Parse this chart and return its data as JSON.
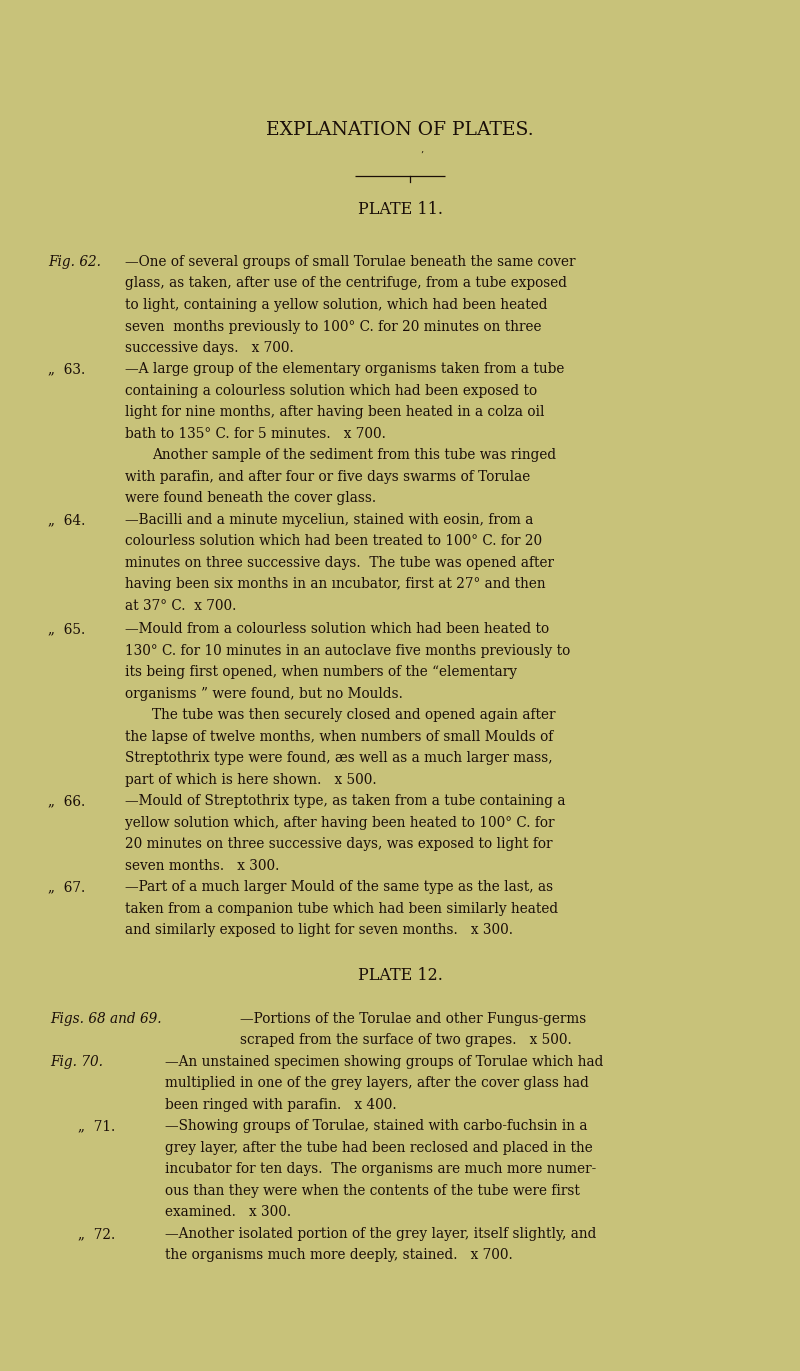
{
  "background_color": "#c8c27a",
  "text_color": "#1a0e08",
  "page_width": 8.0,
  "page_height": 13.71,
  "main_title": "EXPLANATION OF PLATES.",
  "plate11_title": "PLATE 11.",
  "plate12_title": "PLATE 12."
}
